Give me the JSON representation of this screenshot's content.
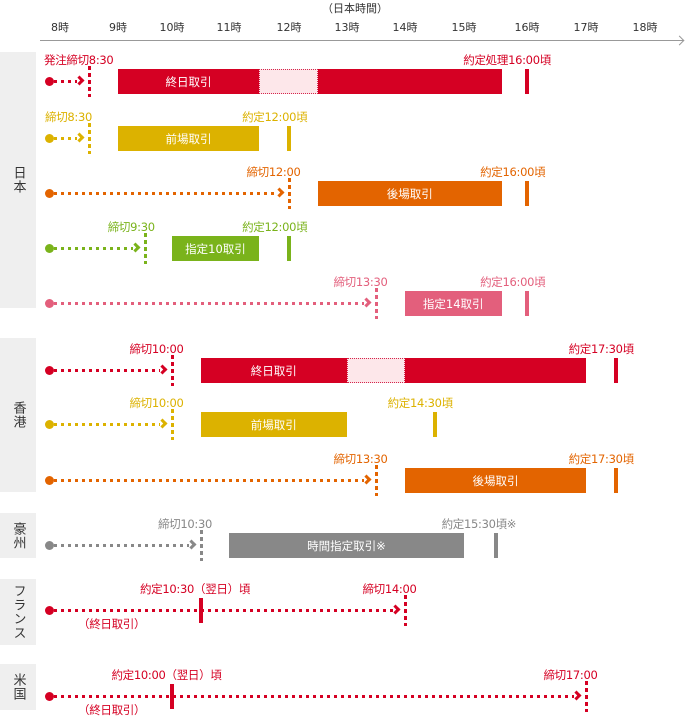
{
  "axis": {
    "title": "（日本時間）",
    "ticks": [
      "8時",
      "9時",
      "10時",
      "11時",
      "12時",
      "13時",
      "14時",
      "15時",
      "16時",
      "17時",
      "18時"
    ]
  },
  "colors": {
    "red": "#d50023",
    "yellow": "#dcb200",
    "orange": "#e36400",
    "green": "#7ab31b",
    "pink": "#e35f7c",
    "gray": "#888888",
    "gap_fill": "#fde7ea"
  },
  "regions": [
    {
      "name": "日本",
      "rows": [
        {
          "color": "red",
          "cutoff_label": "発注締切8:30",
          "cutoff_time": 8.5,
          "bar_label": "終日取引",
          "bar_start": 9.0,
          "bar_end": 15.5,
          "gap_start": 11.5,
          "gap_end": 12.5,
          "settle_label": "約定処理16:00頃",
          "settle_time": 16.0
        },
        {
          "color": "yellow",
          "cutoff_label": "締切8:30",
          "cutoff_time": 8.5,
          "bar_label": "前場取引",
          "bar_start": 9.0,
          "bar_end": 11.5,
          "settle_label": "約定12:00頃",
          "settle_time": 12.0
        },
        {
          "color": "orange",
          "cutoff_label": "締切12:00",
          "cutoff_time": 12.0,
          "bar_label": "後場取引",
          "bar_start": 12.5,
          "bar_end": 15.5,
          "settle_label": "約定16:00頃",
          "settle_time": 16.0
        },
        {
          "color": "green",
          "cutoff_label": "締切9:30",
          "cutoff_time": 9.5,
          "bar_label": "指定10取引",
          "bar_start": 10.0,
          "bar_end": 11.5,
          "settle_label": "約定12:00頃",
          "settle_time": 12.0
        },
        {
          "color": "pink",
          "cutoff_label": "締切13:30",
          "cutoff_time": 13.5,
          "bar_label": "指定14取引",
          "bar_start": 14.0,
          "bar_end": 15.5,
          "settle_label": "約定16:00頃",
          "settle_time": 16.0
        }
      ]
    },
    {
      "name": "香港",
      "rows": [
        {
          "color": "red",
          "cutoff_label": "締切10:00",
          "cutoff_time": 10.0,
          "bar_label": "終日取引",
          "bar_start": 10.5,
          "bar_end": 17.0,
          "gap_start": 13.0,
          "gap_end": 14.0,
          "settle_label": "約定17:30頃",
          "settle_time": 17.5
        },
        {
          "color": "yellow",
          "cutoff_label": "締切10:00",
          "cutoff_time": 10.0,
          "bar_label": "前場取引",
          "bar_start": 10.5,
          "bar_end": 13.0,
          "settle_label": "約定14:30頃",
          "settle_time": 14.5
        },
        {
          "color": "orange",
          "cutoff_label": "締切13:30",
          "cutoff_time": 13.5,
          "bar_label": "後場取引",
          "bar_start": 14.0,
          "bar_end": 17.0,
          "settle_label": "約定17:30頃",
          "settle_time": 17.5
        }
      ]
    },
    {
      "name": "豪州",
      "rows": [
        {
          "color": "gray",
          "cutoff_label": "締切10:30",
          "cutoff_time": 10.5,
          "bar_label": "時間指定取引※",
          "bar_start": 11.0,
          "bar_end": 15.0,
          "settle_label": "約定15:30頃※",
          "settle_time": 15.5
        }
      ]
    },
    {
      "name": "フランス",
      "rows": [
        {
          "color": "red",
          "cutoff_label": "締切14:00",
          "cutoff_time": 14.0,
          "settle_label": "約定10:30（翌日）頃",
          "settle_time": 10.5,
          "note": "（終日取引）"
        }
      ]
    },
    {
      "name": "米国",
      "rows": [
        {
          "color": "red",
          "cutoff_label": "締切17:00",
          "cutoff_time": 17.0,
          "settle_label": "約定10:00（翌日）頃",
          "settle_time": 10.0,
          "note": "（終日取引）"
        }
      ]
    }
  ]
}
